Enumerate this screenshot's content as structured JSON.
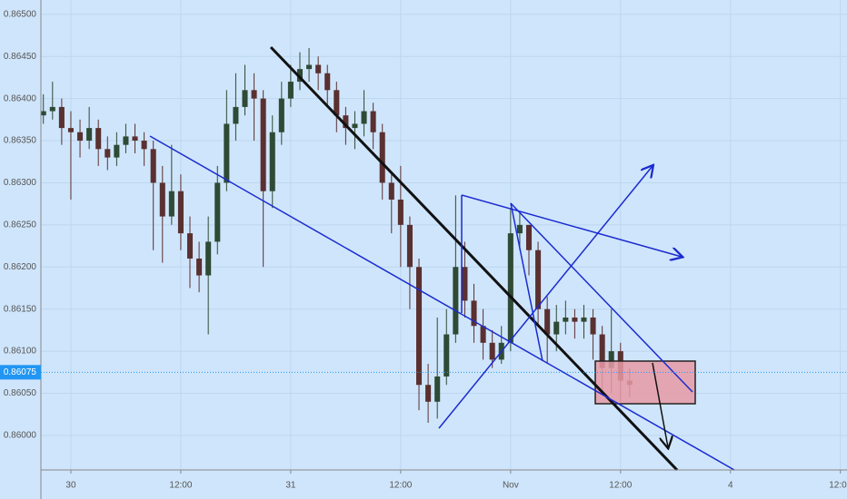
{
  "chart_data": {
    "type": "candlestick",
    "up_color": "#2f4a35",
    "down_color": "#5a3030",
    "x": [
      -3,
      -2,
      -1,
      0,
      1,
      2,
      3,
      4,
      5,
      6,
      7,
      8,
      9,
      10,
      11,
      12,
      13,
      14,
      15,
      16,
      17,
      18,
      19,
      20,
      21,
      22,
      23,
      24,
      25,
      26,
      27,
      28,
      29,
      30,
      31,
      32,
      33,
      34,
      35,
      36,
      37,
      38,
      39,
      40,
      41,
      42,
      43,
      44,
      45,
      46,
      47,
      48,
      49,
      50,
      51,
      52,
      53,
      54,
      55,
      56,
      57,
      58,
      59,
      60,
      61
    ],
    "open": [
      0.8638,
      0.86385,
      0.8639,
      0.86365,
      0.8636,
      0.8635,
      0.86365,
      0.8634,
      0.8633,
      0.86345,
      0.86355,
      0.8635,
      0.8634,
      0.863,
      0.8626,
      0.8629,
      0.8624,
      0.8621,
      0.8619,
      0.8623,
      0.863,
      0.8637,
      0.8639,
      0.8641,
      0.864,
      0.8629,
      0.8636,
      0.864,
      0.8642,
      0.86435,
      0.8644,
      0.8643,
      0.8641,
      0.8638,
      0.86365,
      0.8637,
      0.86385,
      0.8636,
      0.863,
      0.8628,
      0.8625,
      0.862,
      0.8606,
      0.8604,
      0.8607,
      0.8612,
      0.862,
      0.8616,
      0.8613,
      0.8611,
      0.8609,
      0.8611,
      0.8624,
      0.8625,
      0.8622,
      0.8615,
      0.8612,
      0.86135,
      0.8614,
      0.86135,
      0.8614,
      0.8612,
      0.8608,
      0.861,
      0.86065
    ],
    "high": [
      0.86405,
      0.8642,
      0.864,
      0.86385,
      0.86375,
      0.8639,
      0.86375,
      0.86355,
      0.8636,
      0.8637,
      0.8637,
      0.8636,
      0.8635,
      0.8632,
      0.86345,
      0.8631,
      0.8626,
      0.8623,
      0.8626,
      0.8632,
      0.8641,
      0.8643,
      0.8644,
      0.8643,
      0.8641,
      0.8638,
      0.8642,
      0.8644,
      0.86455,
      0.8646,
      0.8645,
      0.8644,
      0.8642,
      0.8639,
      0.86385,
      0.8641,
      0.86395,
      0.8637,
      0.8631,
      0.8632,
      0.8626,
      0.8621,
      0.86085,
      0.8614,
      0.8615,
      0.86285,
      0.8623,
      0.8618,
      0.8615,
      0.86125,
      0.8613,
      0.8627,
      0.86265,
      0.8625,
      0.8623,
      0.86165,
      0.86155,
      0.8616,
      0.8615,
      0.86155,
      0.8615,
      0.8613,
      0.8615,
      0.8611,
      0.8608
    ],
    "low": [
      0.8637,
      0.86375,
      0.86345,
      0.8628,
      0.8633,
      0.8634,
      0.8632,
      0.86315,
      0.8632,
      0.86335,
      0.86335,
      0.8632,
      0.8622,
      0.86205,
      0.8625,
      0.8622,
      0.86175,
      0.8617,
      0.8612,
      0.86215,
      0.8629,
      0.8635,
      0.8638,
      0.8635,
      0.862,
      0.8627,
      0.86345,
      0.8639,
      0.8641,
      0.8642,
      0.8641,
      0.8639,
      0.8636,
      0.86345,
      0.8634,
      0.86355,
      0.8634,
      0.8628,
      0.8624,
      0.862,
      0.8615,
      0.8603,
      0.86015,
      0.8602,
      0.8606,
      0.8611,
      0.8614,
      0.8611,
      0.8609,
      0.8608,
      0.86085,
      0.861,
      0.8622,
      0.8619,
      0.8613,
      0.86085,
      0.861,
      0.8612,
      0.86115,
      0.86115,
      0.8609,
      0.8605,
      0.8605,
      0.8604,
      0.86045
    ],
    "close": [
      0.86385,
      0.8639,
      0.86365,
      0.8636,
      0.8635,
      0.86365,
      0.8634,
      0.8633,
      0.86345,
      0.86355,
      0.8635,
      0.8634,
      0.863,
      0.8626,
      0.8629,
      0.8624,
      0.8621,
      0.8619,
      0.8623,
      0.863,
      0.8637,
      0.8639,
      0.8641,
      0.864,
      0.8629,
      0.8636,
      0.864,
      0.8642,
      0.86435,
      0.8644,
      0.8643,
      0.8641,
      0.8638,
      0.86365,
      0.8637,
      0.86385,
      0.8636,
      0.863,
      0.8628,
      0.8625,
      0.862,
      0.8606,
      0.8604,
      0.8607,
      0.8612,
      0.862,
      0.8616,
      0.8613,
      0.8611,
      0.8609,
      0.8611,
      0.8624,
      0.8625,
      0.8622,
      0.8615,
      0.8612,
      0.86135,
      0.8614,
      0.86135,
      0.8614,
      0.8612,
      0.8608,
      0.861,
      0.86065,
      0.8606
    ],
    "current_price": 0.86075,
    "xlim": [
      -3.27,
      84.72
    ],
    "xticks": [
      {
        "value": 0,
        "label": "30"
      },
      {
        "value": 12,
        "label": "12:00"
      },
      {
        "value": 24,
        "label": "31"
      },
      {
        "value": 36,
        "label": "12:00"
      },
      {
        "value": 48,
        "label": "Nov"
      },
      {
        "value": 60,
        "label": "12:00"
      },
      {
        "value": 72,
        "label": "4"
      },
      {
        "value": 84,
        "label": "12:00"
      }
    ],
    "ylim": [
      0.85959,
      0.86517
    ],
    "yticks": [
      {
        "value": 0.86,
        "label": "0.86000"
      },
      {
        "value": 0.8605,
        "label": "0.86050"
      },
      {
        "value": 0.861,
        "label": "0.86100"
      },
      {
        "value": 0.8615,
        "label": "0.86150"
      },
      {
        "value": 0.862,
        "label": "0.86200"
      },
      {
        "value": 0.8625,
        "label": "0.86250"
      },
      {
        "value": 0.863,
        "label": "0.86300"
      },
      {
        "value": 0.8635,
        "label": "0.86350"
      },
      {
        "value": 0.864,
        "label": "0.86400"
      },
      {
        "value": 0.8645,
        "label": "0.86450"
      },
      {
        "value": 0.865,
        "label": "0.86500"
      }
    ],
    "grid": true
  }
}
